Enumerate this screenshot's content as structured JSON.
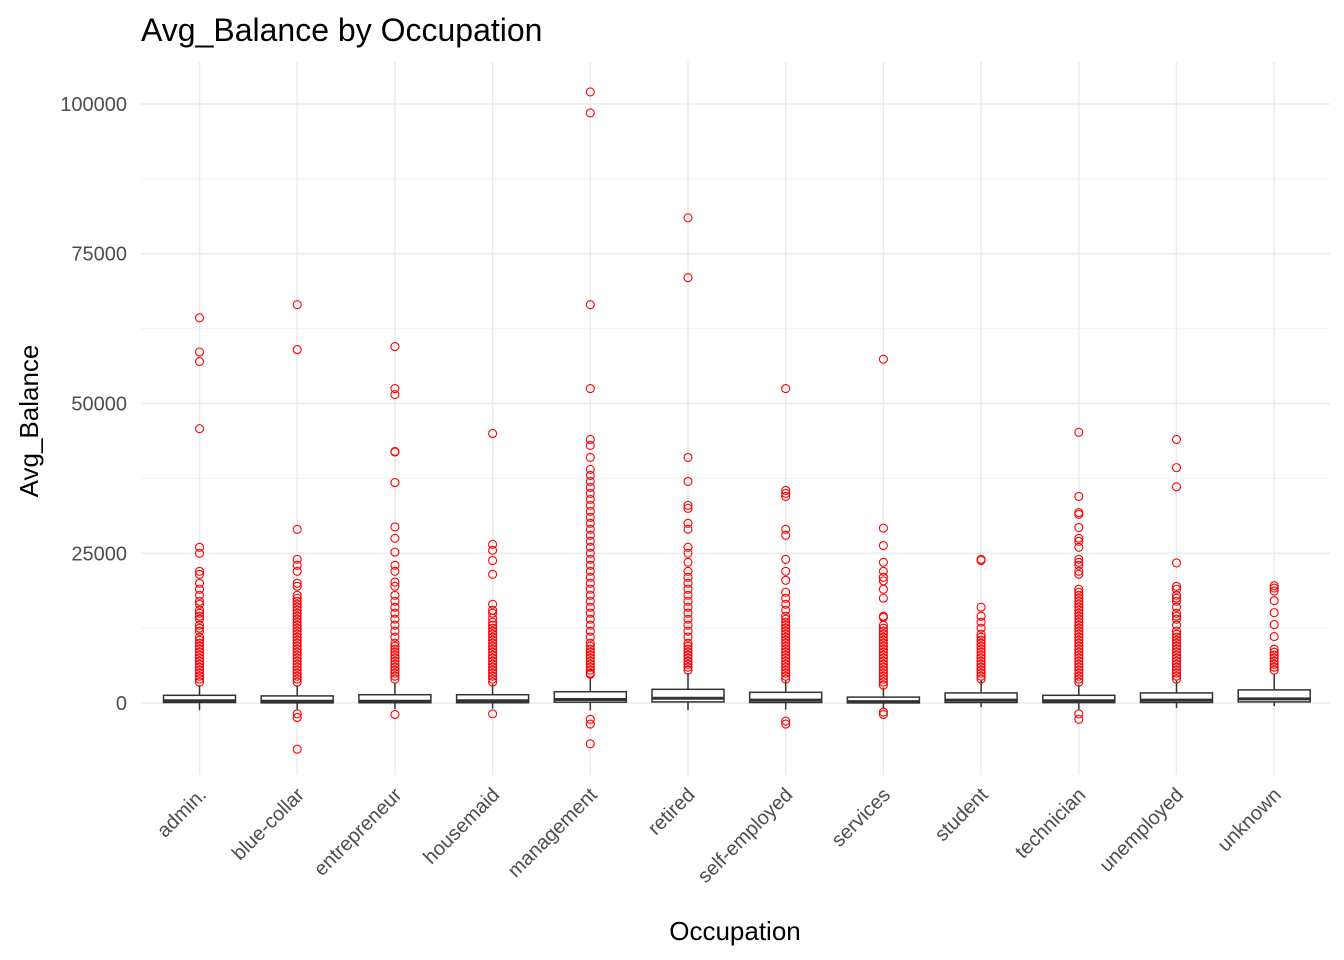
{
  "chart_data": {
    "type": "box",
    "title": "Avg_Balance by Occupation",
    "xlabel": "Occupation",
    "ylabel": "Avg_Balance",
    "ylim": [
      -12000,
      107000
    ],
    "yticks": [
      0,
      25000,
      50000,
      75000,
      100000
    ],
    "ytick_labels": [
      "0",
      "25000",
      "50000",
      "75000",
      "100000"
    ],
    "grid": true,
    "outlier_color": "#ff0000",
    "box_color": "#333333",
    "categories": [
      "admin.",
      "blue-collar",
      "entrepreneur",
      "housemaid",
      "management",
      "retired",
      "self-employed",
      "services",
      "student",
      "technician",
      "unemployed",
      "unknown"
    ],
    "boxes": [
      {
        "q1": 100,
        "median": 400,
        "q3": 1300,
        "whisker_low": -1200,
        "whisker_high": 3000,
        "outliers": [
          64300,
          58600,
          57000,
          45800,
          26000,
          25000,
          22000,
          21500,
          20000,
          19000,
          18000,
          17000,
          16500,
          15500,
          15000,
          14500,
          14000,
          13000,
          12500,
          12000,
          11000,
          10500,
          10000,
          9500,
          9000,
          8500,
          8000,
          7500,
          7000,
          6500,
          6000,
          5500,
          5000,
          4500,
          4000,
          3500
        ]
      },
      {
        "q1": 40,
        "median": 300,
        "q3": 1200,
        "whisker_low": -1100,
        "whisker_high": 3000,
        "outliers": [
          66500,
          59000,
          29000,
          24000,
          23000,
          22000,
          20000,
          19500,
          18000,
          17500,
          17000,
          16500,
          16000,
          15500,
          15000,
          14500,
          14000,
          13500,
          13000,
          12500,
          12000,
          11500,
          11000,
          10500,
          10000,
          9500,
          9000,
          8500,
          8000,
          7500,
          7000,
          6500,
          6000,
          5500,
          5000,
          4500,
          4000,
          3500,
          -1800,
          -2400,
          -7700
        ]
      },
      {
        "q1": 60,
        "median": 300,
        "q3": 1400,
        "whisker_low": -1000,
        "whisker_high": 3300,
        "outliers": [
          59500,
          52500,
          51500,
          42000,
          41900,
          36800,
          29400,
          27500,
          25200,
          23000,
          22000,
          20200,
          19500,
          18000,
          17000,
          16000,
          15000,
          14000,
          13000,
          12000,
          11000,
          10000,
          9500,
          9000,
          8500,
          8000,
          7500,
          7000,
          6500,
          6000,
          5500,
          5000,
          4500,
          4000,
          -1900
        ]
      },
      {
        "q1": 60,
        "median": 400,
        "q3": 1400,
        "whisker_low": -900,
        "whisker_high": 3200,
        "outliers": [
          45000,
          26500,
          25500,
          23800,
          21500,
          16500,
          15500,
          15000,
          14200,
          13500,
          13000,
          12500,
          12000,
          11500,
          11000,
          10500,
          10000,
          9500,
          9000,
          8500,
          8000,
          7500,
          7000,
          6500,
          6000,
          5500,
          5000,
          4500,
          4000,
          3500,
          -1800
        ]
      },
      {
        "q1": 150,
        "median": 600,
        "q3": 1900,
        "whisker_low": -1200,
        "whisker_high": 4300,
        "outliers": [
          102000,
          98500,
          66500,
          52500,
          44000,
          43000,
          41000,
          39000,
          38000,
          37000,
          36000,
          35000,
          34000,
          33000,
          32000,
          31000,
          30000,
          29000,
          28000,
          27000,
          26000,
          25000,
          24000,
          23000,
          22000,
          21000,
          20000,
          19000,
          18000,
          17000,
          16000,
          15000,
          14000,
          13000,
          12000,
          11000,
          10000,
          9500,
          9000,
          8500,
          8000,
          7500,
          7000,
          6500,
          6000,
          5500,
          5000,
          4800,
          -2700,
          -3500,
          -6800
        ]
      },
      {
        "q1": 200,
        "median": 800,
        "q3": 2300,
        "whisker_low": -1200,
        "whisker_high": 5000,
        "outliers": [
          81000,
          71000,
          41000,
          37000,
          33000,
          32500,
          30000,
          29000,
          26000,
          25000,
          23500,
          22000,
          21000,
          20000,
          19000,
          18000,
          17000,
          16000,
          15000,
          14000,
          13000,
          12000,
          11000,
          10000,
          9500,
          9000,
          8500,
          8000,
          7500,
          7000,
          6500,
          6000,
          5500
        ]
      },
      {
        "q1": 100,
        "median": 500,
        "q3": 1800,
        "whisker_low": -1100,
        "whisker_high": 3800,
        "outliers": [
          52500,
          35500,
          35000,
          34500,
          29000,
          28000,
          24000,
          22000,
          20500,
          18500,
          17500,
          16500,
          15500,
          14500,
          14000,
          13500,
          13000,
          12500,
          12000,
          11500,
          11000,
          10500,
          10000,
          9500,
          9000,
          8500,
          8000,
          7500,
          7000,
          6500,
          6000,
          5500,
          5000,
          4500,
          4000,
          -3000,
          -3500
        ]
      },
      {
        "q1": 30,
        "median": 250,
        "q3": 1000,
        "whisker_low": -1000,
        "whisker_high": 2600,
        "outliers": [
          57400,
          29200,
          26300,
          23500,
          22000,
          21000,
          20400,
          19000,
          17500,
          14500,
          14300,
          13000,
          12500,
          12000,
          11500,
          11000,
          10500,
          10000,
          9500,
          9000,
          8500,
          8000,
          7500,
          7000,
          6500,
          6000,
          5500,
          5000,
          4500,
          4000,
          3500,
          3000,
          -1500,
          -1900
        ]
      },
      {
        "q1": 100,
        "median": 500,
        "q3": 1700,
        "whisker_low": -700,
        "whisker_high": 3800,
        "outliers": [
          24000,
          23800,
          16000,
          14500,
          13500,
          12500,
          11500,
          11000,
          10500,
          10000,
          9500,
          9000,
          8500,
          8000,
          7500,
          7000,
          6500,
          6000,
          5500,
          5000,
          4500,
          4000
        ]
      },
      {
        "q1": 80,
        "median": 400,
        "q3": 1300,
        "whisker_low": -1200,
        "whisker_high": 3100,
        "outliers": [
          45200,
          34500,
          31800,
          31500,
          29300,
          27500,
          27000,
          26000,
          24000,
          23500,
          23000,
          22000,
          21500,
          19000,
          18500,
          18000,
          17500,
          17000,
          16500,
          16000,
          15500,
          15000,
          14500,
          14000,
          13500,
          13000,
          12500,
          12000,
          11500,
          11000,
          10500,
          10000,
          9500,
          9000,
          8500,
          8000,
          7500,
          7000,
          6500,
          6000,
          5500,
          5000,
          4500,
          4000,
          3500,
          -1800,
          -2700
        ]
      },
      {
        "q1": 100,
        "median": 500,
        "q3": 1700,
        "whisker_low": -800,
        "whisker_high": 3700,
        "outliers": [
          44000,
          39300,
          36100,
          23400,
          19500,
          19000,
          18000,
          17500,
          17000,
          16000,
          15000,
          14500,
          14000,
          13000,
          12000,
          11500,
          11000,
          10500,
          10000,
          9500,
          9000,
          8500,
          8000,
          7500,
          7000,
          6500,
          6000,
          5500,
          5000,
          4500,
          4000
        ]
      },
      {
        "q1": 200,
        "median": 700,
        "q3": 2200,
        "whisker_low": -500,
        "whisker_high": 4900,
        "outliers": [
          19600,
          19200,
          18700,
          17100,
          15100,
          13100,
          11100,
          9000,
          8500,
          8000,
          7500,
          7000,
          6500,
          6000,
          5500
        ]
      }
    ]
  }
}
